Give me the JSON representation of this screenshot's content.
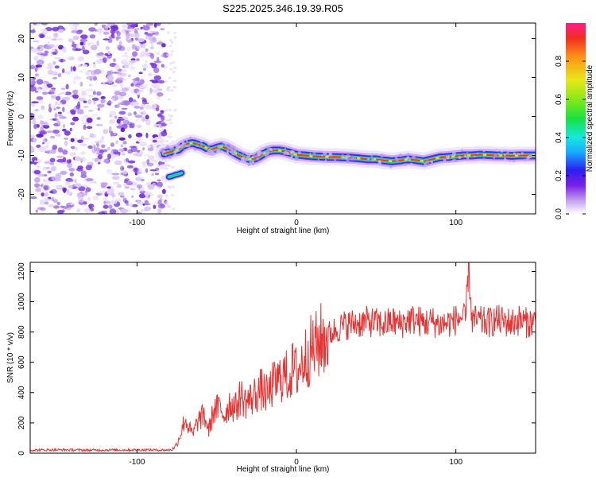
{
  "figure": {
    "title": "S225.2025.346.19.39.R05"
  },
  "chart_data": [
    {
      "type": "heatmap",
      "title": "S225.2025.346.19.39.R05",
      "xlabel": "Height of straight line (km)",
      "ylabel": "Frequency (Hz)",
      "xlim": [
        -167,
        150
      ],
      "ylim": [
        -25,
        24
      ],
      "xticks": [
        -100,
        0,
        100
      ],
      "yticks": [
        -20,
        -10,
        0,
        10,
        20
      ],
      "noise_region_x": [
        -167,
        -82
      ],
      "signal_trace": {
        "x": [
          -83,
          -80,
          -77,
          -74,
          -71,
          -68,
          -65,
          -62,
          -59,
          -56,
          -53,
          -50,
          -47,
          -44,
          -41,
          -38,
          -35,
          -32,
          -29,
          -26,
          -23,
          -20,
          -17,
          -14,
          -11,
          -8,
          -5,
          -2,
          0,
          5,
          10,
          15,
          20,
          25,
          30,
          35,
          40,
          45,
          50,
          55,
          60,
          65,
          70,
          75,
          80,
          85,
          90,
          95,
          100,
          105,
          110,
          115,
          120,
          125,
          130,
          135,
          140,
          145,
          150
        ],
        "y": [
          -9.5,
          -9.2,
          -8.8,
          -8.5,
          -7.5,
          -7.0,
          -6.8,
          -7.2,
          -7.5,
          -8.2,
          -8.5,
          -8.0,
          -7.7,
          -8.1,
          -8.8,
          -9.5,
          -10.2,
          -10.6,
          -11.0,
          -10.8,
          -10.2,
          -9.4,
          -8.9,
          -8.7,
          -8.7,
          -8.9,
          -9.2,
          -9.6,
          -9.8,
          -10.0,
          -10.2,
          -10.3,
          -10.4,
          -10.4,
          -10.5,
          -10.6,
          -10.8,
          -11.0,
          -11.0,
          -11.3,
          -11.5,
          -11.3,
          -11.0,
          -11.2,
          -11.5,
          -11.0,
          -10.5,
          -10.4,
          -10.2,
          -10.0,
          -10.0,
          -9.8,
          -9.9,
          -10.0,
          -10.0,
          -10.1,
          -10.0,
          -10.0,
          -10.0
        ]
      },
      "secondary_trace": {
        "x": [
          -80,
          -78,
          -76,
          -74,
          -72
        ],
        "y": [
          -15.5,
          -15.3,
          -15.0,
          -14.8,
          -14.5
        ]
      },
      "colorbar": {
        "label": "Normalized spectral amplitude",
        "range": [
          0,
          1
        ],
        "ticks": [
          0.0,
          0.2,
          0.4,
          0.6,
          0.8
        ],
        "tick_labels": [
          "0.0",
          "0.2",
          "0.4",
          "0.6",
          "0.8"
        ]
      }
    },
    {
      "type": "line",
      "xlabel": "Height of straight line (km)",
      "ylabel": "SNR (10 * v/v)",
      "xlim": [
        -167,
        150
      ],
      "ylim": [
        0,
        1260
      ],
      "xticks": [
        -100,
        0,
        100
      ],
      "yticks": [
        0,
        200,
        400,
        600,
        800,
        1000,
        1200
      ],
      "color": "#e83232",
      "series": [
        {
          "x": [
            -167,
            -150,
            -130,
            -110,
            -95,
            -85,
            -78,
            -75,
            -72,
            -70,
            -68,
            -65,
            -62,
            -58,
            -55,
            -52,
            -48,
            -45,
            -42,
            -38,
            -35,
            -32,
            -28,
            -25,
            -22,
            -18,
            -15,
            -12,
            -8,
            -5,
            -2,
            0,
            3,
            6,
            9,
            12,
            15,
            18,
            21,
            24,
            27,
            30,
            35,
            40,
            45,
            50,
            55,
            60,
            65,
            70,
            75,
            80,
            85,
            90,
            95,
            100,
            103,
            106,
            108,
            110,
            115,
            120,
            125,
            130,
            135,
            140,
            145,
            150
          ],
          "y": [
            20,
            22,
            20,
            21,
            22,
            20,
            22,
            60,
            150,
            230,
            180,
            120,
            210,
            250,
            150,
            280,
            300,
            250,
            330,
            300,
            380,
            340,
            360,
            400,
            420,
            380,
            450,
            470,
            520,
            500,
            560,
            530,
            590,
            640,
            680,
            700,
            740,
            760,
            790,
            810,
            830,
            845,
            855,
            860,
            870,
            860,
            850,
            870,
            850,
            880,
            880,
            860,
            870,
            850,
            860,
            880,
            900,
            870,
            1260,
            880,
            870,
            860,
            880,
            870,
            860,
            880,
            860,
            870
          ]
        }
      ]
    }
  ]
}
